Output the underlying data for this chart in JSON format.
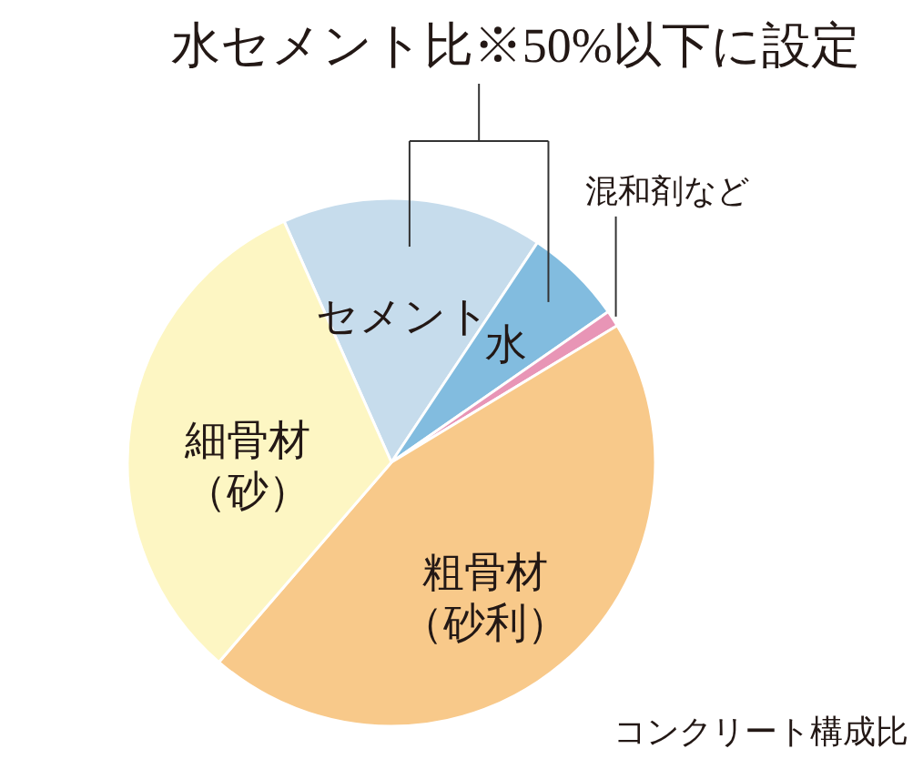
{
  "chart_data": {
    "type": "pie",
    "title": "コンクリート構成比",
    "categories": [
      "セメント",
      "水",
      "混和剤など",
      "粗骨材（砂利）",
      "細骨材（砂）"
    ],
    "values": [
      16,
      6,
      1,
      45,
      32
    ],
    "colors": [
      "#c6dcec",
      "#82bcdf",
      "#e895b6",
      "#f8c98a",
      "#fdf6c3"
    ],
    "annotations": [
      "水セメント比※50%以下に設定"
    ]
  }
}
